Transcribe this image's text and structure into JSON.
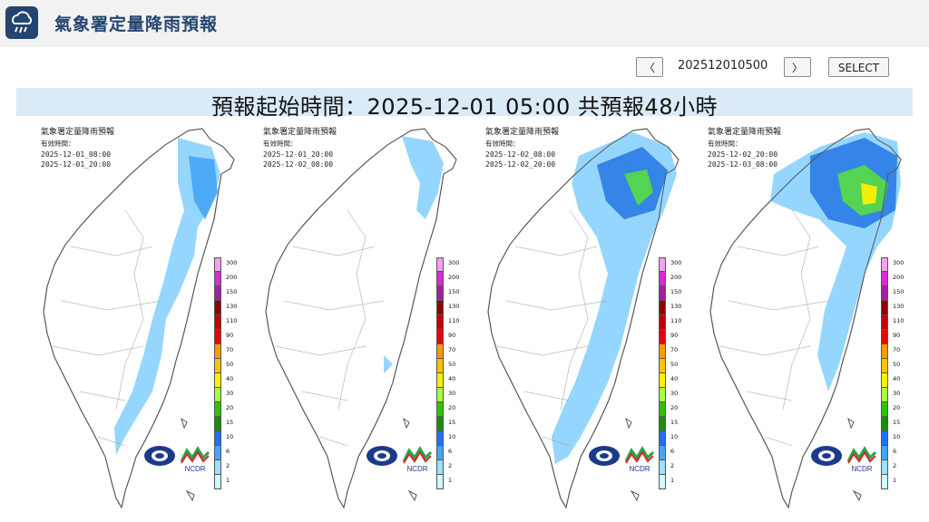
{
  "app": {
    "title": "氣象署定量降雨預報"
  },
  "controls": {
    "prev": "〈",
    "time": "202512010500",
    "next": "〉",
    "select": "SELECT"
  },
  "banner": {
    "text": "預報起始時間：2025-12-01 05:00  共預報48小時"
  },
  "panels": [
    {
      "title": "氣象署定量降雨預報",
      "subtitle": "有效時間：",
      "start": "2025-12-01_08:00",
      "end": "2025-12-01_20:00"
    },
    {
      "title": "氣象署定量降雨預報",
      "subtitle": "有效時間：",
      "start": "2025-12-01_20:00",
      "end": "2025-12-02_08:00"
    },
    {
      "title": "氣象署定量降雨預報",
      "subtitle": "有效時間：",
      "start": "2025-12-02_08:00",
      "end": "2025-12-02_20:00"
    },
    {
      "title": "氣象署定量降雨預報",
      "subtitle": "有效時間：",
      "start": "2025-12-02_20:00",
      "end": "2025-12-03_08:00"
    }
  ],
  "scale": {
    "labels": [
      "300",
      "200",
      "150",
      "130",
      "110",
      "90",
      "70",
      "50",
      "40",
      "30",
      "20",
      "15",
      "10",
      "6",
      "2",
      "1"
    ],
    "colors": [
      "#f3a0f2",
      "#d92bd4",
      "#a41fa1",
      "#8f0007",
      "#c2000b",
      "#ee0000",
      "#ff9a00",
      "#ffc200",
      "#fff000",
      "#a6ff3f",
      "#2ec400",
      "#1b8e08",
      "#2170f5",
      "#43a5ff",
      "#9fdfff",
      "#cffbff"
    ]
  },
  "logos": {
    "ncdr": "NCDR"
  }
}
